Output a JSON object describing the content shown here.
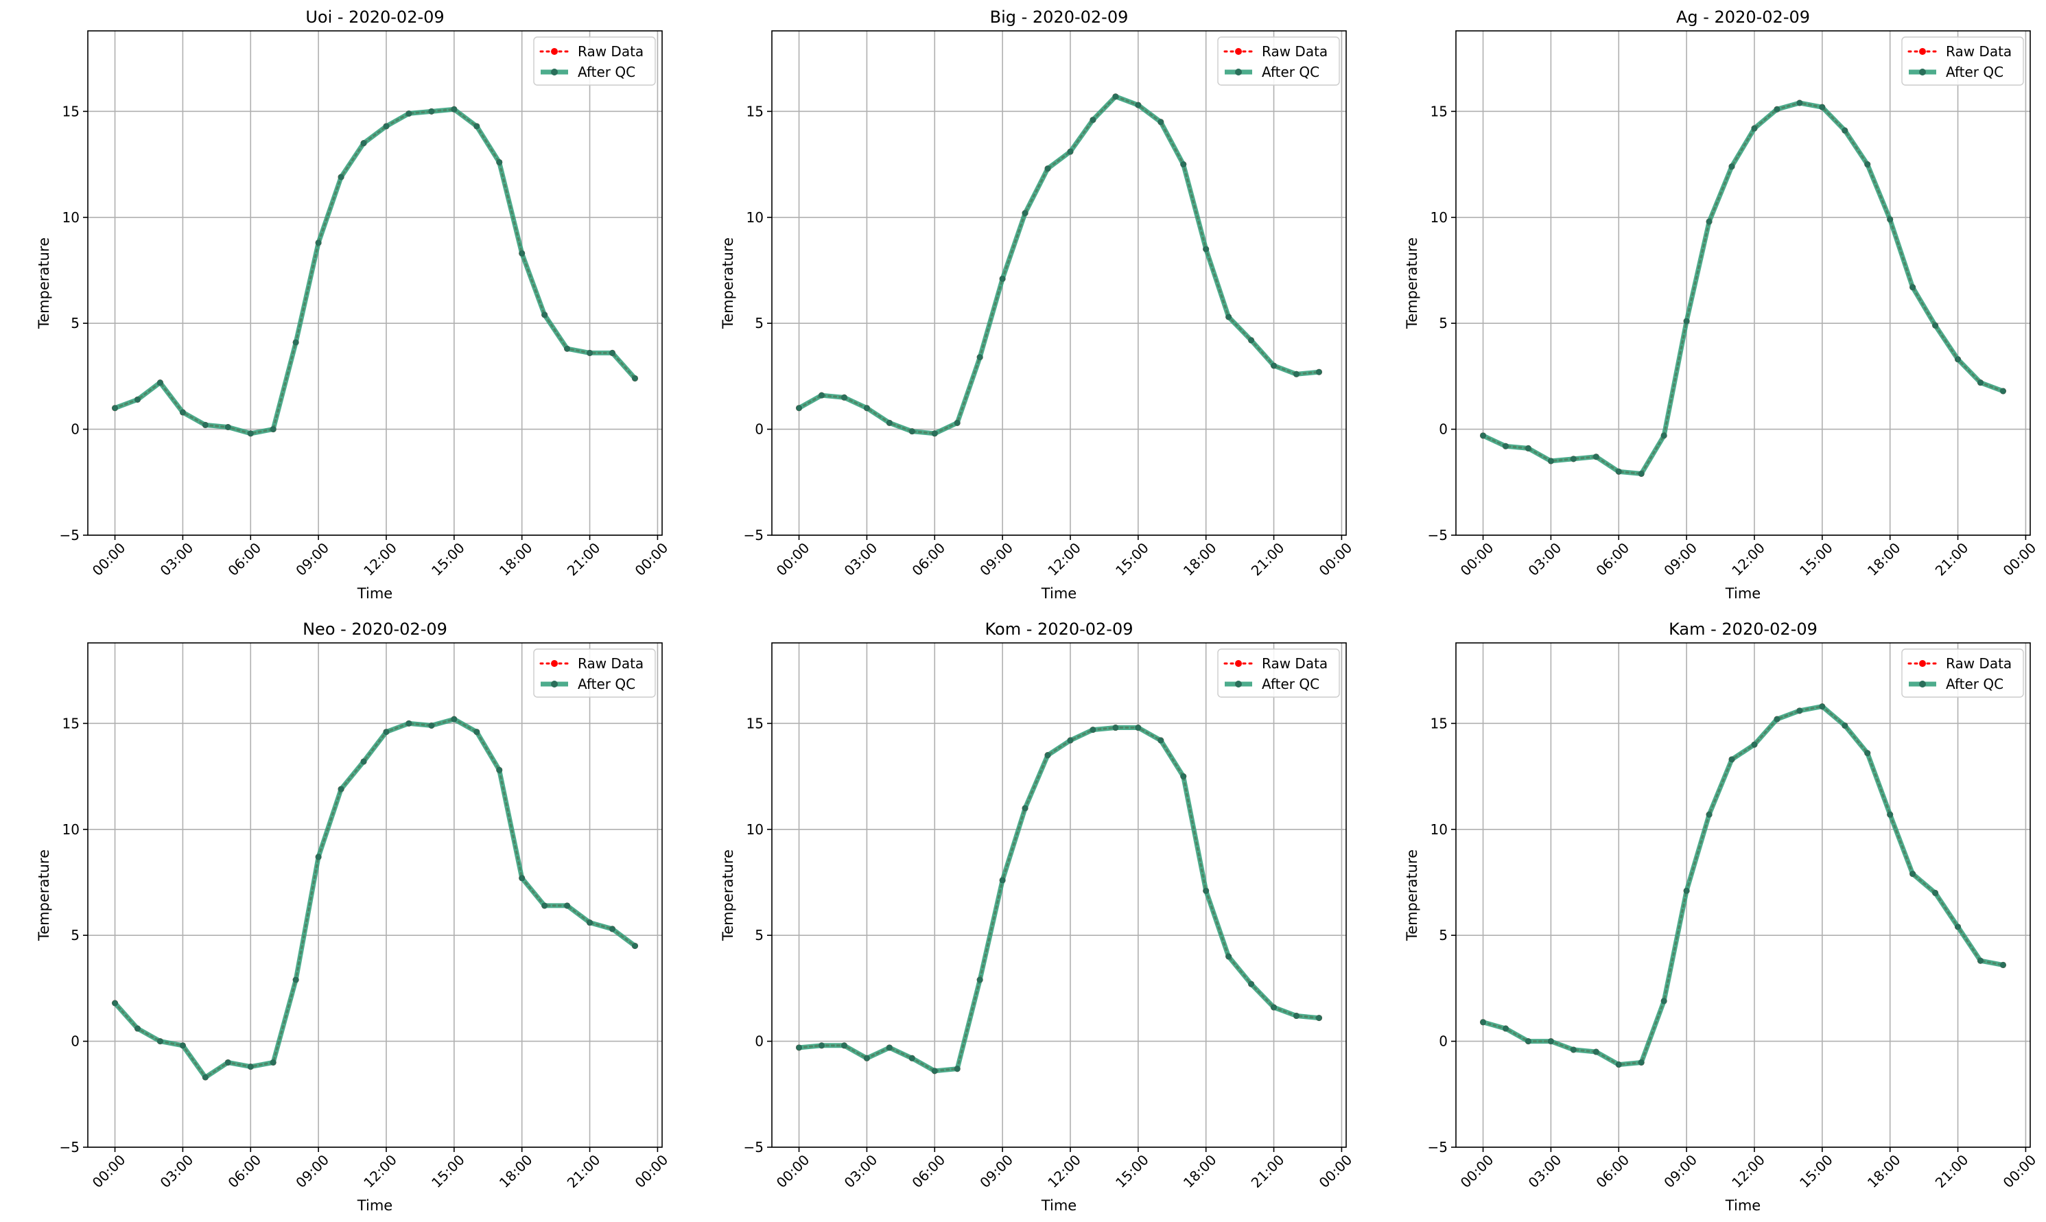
{
  "colors": {
    "raw": "#ff0000",
    "qc": "#2e9e78",
    "qc_marker": "#2a6f5a",
    "grid": "#b0b0b0",
    "axes": "#000000"
  },
  "legend": {
    "raw_label": "Raw Data",
    "qc_label": "After QC",
    "placement": "top-right"
  },
  "chart_data": [
    {
      "type": "line",
      "title": "Uoi - 2020-02-09",
      "xlabel": "Time",
      "ylabel": "Temperature",
      "xticks": [
        "00:00",
        "03:00",
        "06:00",
        "09:00",
        "12:00",
        "15:00",
        "18:00",
        "21:00",
        "00:00"
      ],
      "yticks": [
        "−5",
        "0",
        "5",
        "10",
        "15"
      ],
      "xlim": [
        -1.2,
        24.2
      ],
      "ylim": [
        -5,
        18.8
      ],
      "grid": true,
      "x": [
        0,
        1,
        2,
        3,
        4,
        5,
        6,
        7,
        8,
        9,
        10,
        11,
        12,
        13,
        14,
        15,
        16,
        17,
        18,
        19,
        20,
        21,
        22,
        23
      ],
      "series": [
        {
          "name": "Raw Data",
          "values": [
            1.0,
            1.4,
            2.2,
            0.8,
            0.2,
            0.1,
            -0.2,
            0.0,
            4.1,
            8.8,
            11.9,
            13.5,
            14.3,
            14.9,
            15.0,
            15.1,
            14.3,
            12.6,
            8.3,
            5.4,
            3.8,
            3.6,
            3.6,
            2.4
          ]
        },
        {
          "name": "After QC",
          "values": [
            1.0,
            1.4,
            2.2,
            0.8,
            0.2,
            0.1,
            -0.2,
            0.0,
            4.1,
            8.8,
            11.9,
            13.5,
            14.3,
            14.9,
            15.0,
            15.1,
            14.3,
            12.6,
            8.3,
            5.4,
            3.8,
            3.6,
            3.6,
            2.4
          ]
        }
      ]
    },
    {
      "type": "line",
      "title": "Big - 2020-02-09",
      "xlabel": "Time",
      "ylabel": "Temperature",
      "xticks": [
        "00:00",
        "03:00",
        "06:00",
        "09:00",
        "12:00",
        "15:00",
        "18:00",
        "21:00",
        "00:00"
      ],
      "yticks": [
        "−5",
        "0",
        "5",
        "10",
        "15"
      ],
      "xlim": [
        -1.2,
        24.2
      ],
      "ylim": [
        -5,
        18.8
      ],
      "grid": true,
      "x": [
        0,
        1,
        2,
        3,
        4,
        5,
        6,
        7,
        8,
        9,
        10,
        11,
        12,
        13,
        14,
        15,
        16,
        17,
        18,
        19,
        20,
        21,
        22,
        23
      ],
      "series": [
        {
          "name": "Raw Data",
          "values": [
            1.0,
            1.6,
            1.5,
            1.0,
            0.3,
            -0.1,
            -0.2,
            0.3,
            3.4,
            7.1,
            10.2,
            12.3,
            13.1,
            14.6,
            15.7,
            15.3,
            14.5,
            12.5,
            8.5,
            5.3,
            4.2,
            3.0,
            2.6,
            2.7
          ]
        },
        {
          "name": "After QC",
          "values": [
            1.0,
            1.6,
            1.5,
            1.0,
            0.3,
            -0.1,
            -0.2,
            0.3,
            3.4,
            7.1,
            10.2,
            12.3,
            13.1,
            14.6,
            15.7,
            15.3,
            14.5,
            12.5,
            8.5,
            5.3,
            4.2,
            3.0,
            2.6,
            2.7
          ]
        }
      ]
    },
    {
      "type": "line",
      "title": "Ag - 2020-02-09",
      "xlabel": "Time",
      "ylabel": "Temperature",
      "xticks": [
        "00:00",
        "03:00",
        "06:00",
        "09:00",
        "12:00",
        "15:00",
        "18:00",
        "21:00",
        "00:00"
      ],
      "yticks": [
        "−5",
        "0",
        "5",
        "10",
        "15"
      ],
      "xlim": [
        -1.2,
        24.2
      ],
      "ylim": [
        -5,
        18.8
      ],
      "grid": true,
      "x": [
        0,
        1,
        2,
        3,
        4,
        5,
        6,
        7,
        8,
        9,
        10,
        11,
        12,
        13,
        14,
        15,
        16,
        17,
        18,
        19,
        20,
        21,
        22,
        23
      ],
      "series": [
        {
          "name": "Raw Data",
          "values": [
            -0.3,
            -0.8,
            -0.9,
            -1.5,
            -1.4,
            -1.3,
            -2.0,
            -2.1,
            -0.3,
            5.1,
            9.8,
            12.4,
            14.2,
            15.1,
            15.4,
            15.2,
            14.1,
            12.5,
            9.9,
            6.7,
            4.9,
            3.3,
            2.2,
            1.8
          ]
        },
        {
          "name": "After QC",
          "values": [
            -0.3,
            -0.8,
            -0.9,
            -1.5,
            -1.4,
            -1.3,
            -2.0,
            -2.1,
            -0.3,
            5.1,
            9.8,
            12.4,
            14.2,
            15.1,
            15.4,
            15.2,
            14.1,
            12.5,
            9.9,
            6.7,
            4.9,
            3.3,
            2.2,
            1.8
          ]
        }
      ]
    },
    {
      "type": "line",
      "title": "Neo - 2020-02-09",
      "xlabel": "Time",
      "ylabel": "Temperature",
      "xticks": [
        "00:00",
        "03:00",
        "06:00",
        "09:00",
        "12:00",
        "15:00",
        "18:00",
        "21:00",
        "00:00"
      ],
      "yticks": [
        "−5",
        "0",
        "5",
        "10",
        "15"
      ],
      "xlim": [
        -1.2,
        24.2
      ],
      "ylim": [
        -5,
        18.8
      ],
      "grid": true,
      "x": [
        0,
        1,
        2,
        3,
        4,
        5,
        6,
        7,
        8,
        9,
        10,
        11,
        12,
        13,
        14,
        15,
        16,
        17,
        18,
        19,
        20,
        21,
        22,
        23
      ],
      "series": [
        {
          "name": "Raw Data",
          "values": [
            1.8,
            0.6,
            0.0,
            -0.2,
            -1.7,
            -1.0,
            -1.2,
            -1.0,
            2.9,
            8.7,
            11.9,
            13.2,
            14.6,
            15.0,
            14.9,
            15.2,
            14.6,
            12.8,
            7.7,
            6.4,
            6.4,
            5.6,
            5.3,
            4.5
          ]
        },
        {
          "name": "After QC",
          "values": [
            1.8,
            0.6,
            0.0,
            -0.2,
            -1.7,
            -1.0,
            -1.2,
            -1.0,
            2.9,
            8.7,
            11.9,
            13.2,
            14.6,
            15.0,
            14.9,
            15.2,
            14.6,
            12.8,
            7.7,
            6.4,
            6.4,
            5.6,
            5.3,
            4.5
          ]
        }
      ]
    },
    {
      "type": "line",
      "title": "Kom - 2020-02-09",
      "xlabel": "Time",
      "ylabel": "Temperature",
      "xticks": [
        "00:00",
        "03:00",
        "06:00",
        "09:00",
        "12:00",
        "15:00",
        "18:00",
        "21:00",
        "00:00"
      ],
      "yticks": [
        "−5",
        "0",
        "5",
        "10",
        "15"
      ],
      "xlim": [
        -1.2,
        24.2
      ],
      "ylim": [
        -5,
        18.8
      ],
      "grid": true,
      "x": [
        0,
        1,
        2,
        3,
        4,
        5,
        6,
        7,
        8,
        9,
        10,
        11,
        12,
        13,
        14,
        15,
        16,
        17,
        18,
        19,
        20,
        21,
        22,
        23
      ],
      "series": [
        {
          "name": "Raw Data",
          "values": [
            -0.3,
            -0.2,
            -0.2,
            -0.8,
            -0.3,
            -0.8,
            -1.4,
            -1.3,
            2.9,
            7.6,
            11.0,
            13.5,
            14.2,
            14.7,
            14.8,
            14.8,
            14.2,
            12.5,
            7.1,
            4.0,
            2.7,
            1.6,
            1.2,
            1.1
          ]
        },
        {
          "name": "After QC",
          "values": [
            -0.3,
            -0.2,
            -0.2,
            -0.8,
            -0.3,
            -0.8,
            -1.4,
            -1.3,
            2.9,
            7.6,
            11.0,
            13.5,
            14.2,
            14.7,
            14.8,
            14.8,
            14.2,
            12.5,
            7.1,
            4.0,
            2.7,
            1.6,
            1.2,
            1.1
          ]
        }
      ]
    },
    {
      "type": "line",
      "title": "Kam - 2020-02-09",
      "xlabel": "Time",
      "ylabel": "Temperature",
      "xticks": [
        "00:00",
        "03:00",
        "06:00",
        "09:00",
        "12:00",
        "15:00",
        "18:00",
        "21:00",
        "00:00"
      ],
      "yticks": [
        "−5",
        "0",
        "5",
        "10",
        "15"
      ],
      "xlim": [
        -1.2,
        24.2
      ],
      "ylim": [
        -5,
        18.8
      ],
      "grid": true,
      "x": [
        0,
        1,
        2,
        3,
        4,
        5,
        6,
        7,
        8,
        9,
        10,
        11,
        12,
        13,
        14,
        15,
        16,
        17,
        18,
        19,
        20,
        21,
        22,
        23
      ],
      "series": [
        {
          "name": "Raw Data",
          "values": [
            0.9,
            0.6,
            0.0,
            0.0,
            -0.4,
            -0.5,
            -1.1,
            -1.0,
            1.9,
            7.1,
            10.7,
            13.3,
            14.0,
            15.2,
            15.6,
            15.8,
            14.9,
            13.6,
            10.7,
            7.9,
            7.0,
            5.4,
            3.8,
            3.6
          ]
        },
        {
          "name": "After QC",
          "values": [
            0.9,
            0.6,
            0.0,
            0.0,
            -0.4,
            -0.5,
            -1.1,
            -1.0,
            1.9,
            7.1,
            10.7,
            13.3,
            14.0,
            15.2,
            15.6,
            15.8,
            14.9,
            13.6,
            10.7,
            7.9,
            7.0,
            5.4,
            3.8,
            3.6
          ]
        }
      ]
    }
  ]
}
